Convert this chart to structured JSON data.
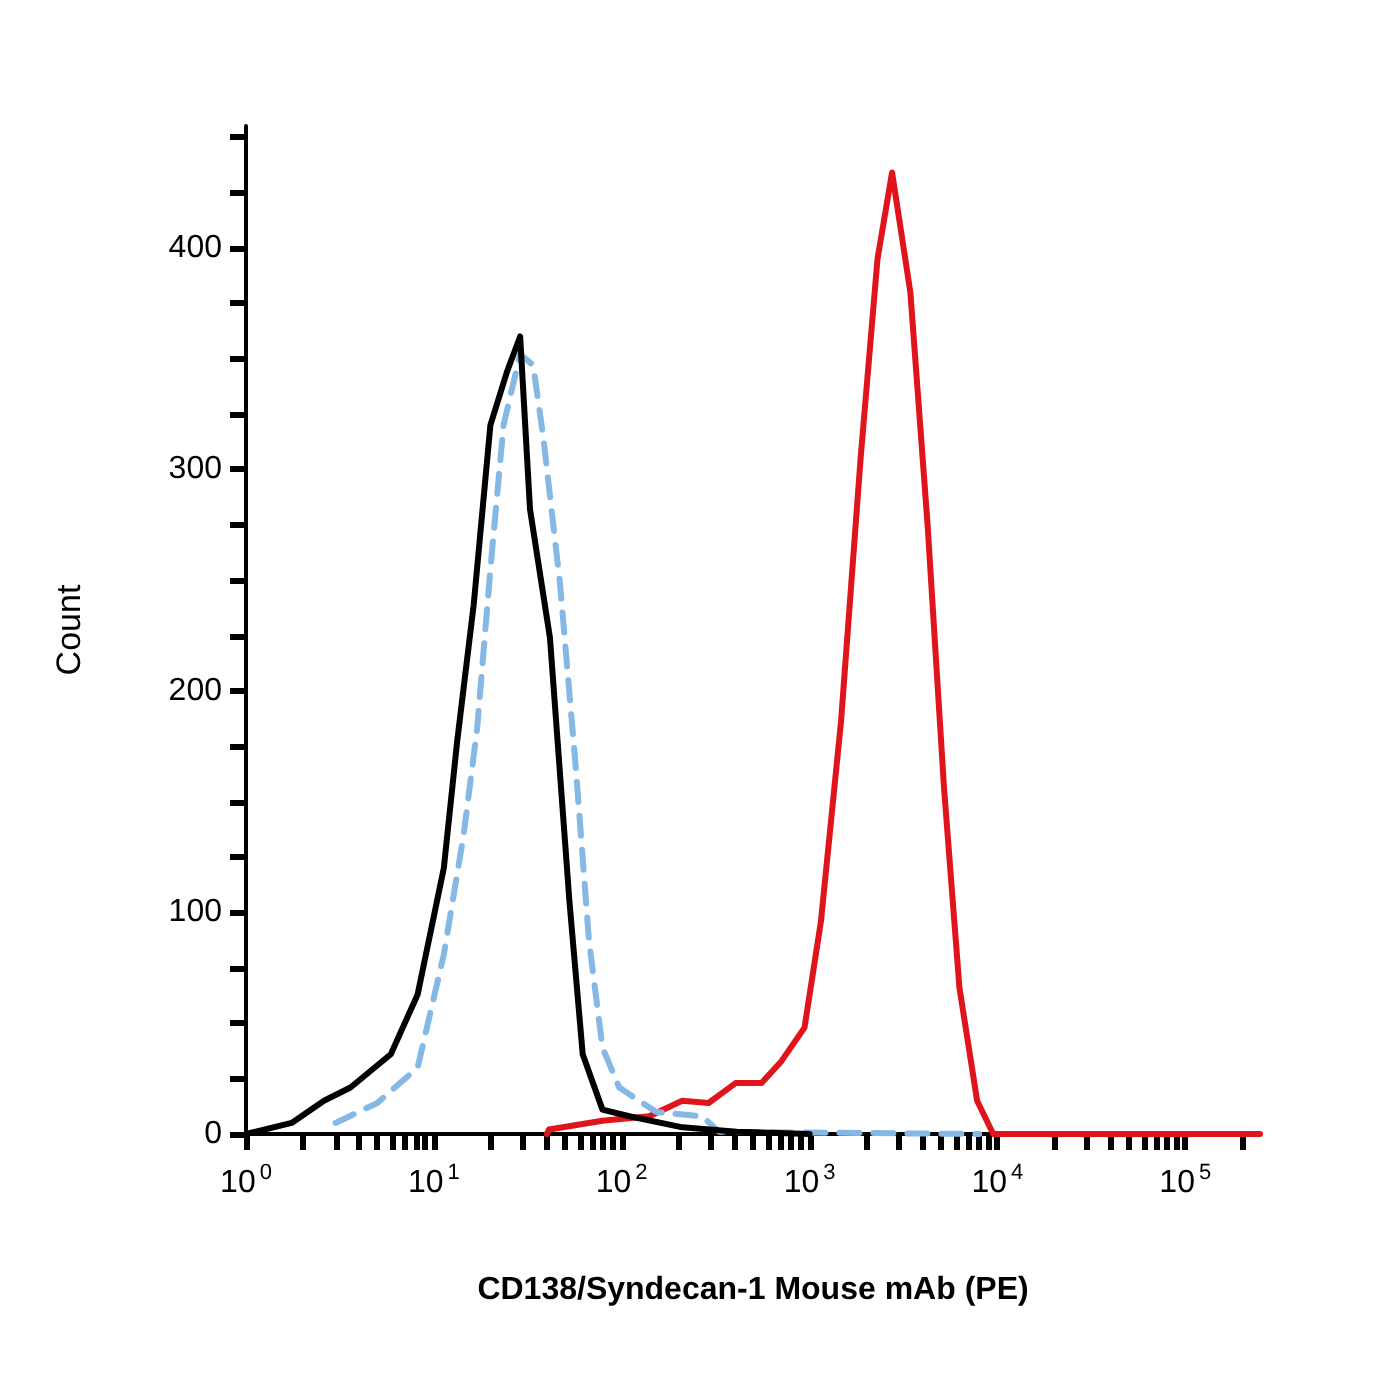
{
  "chart_data": {
    "type": "line",
    "ylabel": "Count",
    "xlabel": "CD138/Syndecan-1 Mouse mAb (PE)",
    "log": "x",
    "grid": false,
    "marker": "none",
    "xlim": [
      1,
      250000
    ],
    "xticks": [
      {
        "value": 1,
        "label": "10$^{0}$"
      },
      {
        "value": 2,
        "label": null
      },
      {
        "value": 3,
        "label": null
      },
      {
        "value": 4,
        "label": null
      },
      {
        "value": 5,
        "label": null
      },
      {
        "value": 6,
        "label": null
      },
      {
        "value": 7,
        "label": null
      },
      {
        "value": 8,
        "label": null
      },
      {
        "value": 9,
        "label": null
      },
      {
        "value": 10,
        "label": "10$^{1}$"
      },
      {
        "value": 20,
        "label": null
      },
      {
        "value": 30,
        "label": null
      },
      {
        "value": 40,
        "label": null
      },
      {
        "value": 50,
        "label": null
      },
      {
        "value": 60,
        "label": null
      },
      {
        "value": 70,
        "label": null
      },
      {
        "value": 80,
        "label": null
      },
      {
        "value": 90,
        "label": null
      },
      {
        "value": 100,
        "label": "10$^{2}$"
      },
      {
        "value": 200,
        "label": null
      },
      {
        "value": 300,
        "label": null
      },
      {
        "value": 400,
        "label": null
      },
      {
        "value": 500,
        "label": null
      },
      {
        "value": 600,
        "label": null
      },
      {
        "value": 700,
        "label": null
      },
      {
        "value": 800,
        "label": null
      },
      {
        "value": 900,
        "label": null
      },
      {
        "value": 1000,
        "label": "10$^{3}$"
      },
      {
        "value": 2000,
        "label": null
      },
      {
        "value": 3000,
        "label": null
      },
      {
        "value": 4000,
        "label": null
      },
      {
        "value": 5000,
        "label": null
      },
      {
        "value": 6000,
        "label": null
      },
      {
        "value": 7000,
        "label": null
      },
      {
        "value": 8000,
        "label": null
      },
      {
        "value": 9000,
        "label": null
      },
      {
        "value": 10000,
        "label": "10$^{4}$"
      },
      {
        "value": 20000,
        "label": null
      },
      {
        "value": 30000,
        "label": null
      },
      {
        "value": 40000,
        "label": null
      },
      {
        "value": 50000,
        "label": null
      },
      {
        "value": 60000,
        "label": null
      },
      {
        "value": 70000,
        "label": null
      },
      {
        "value": 80000,
        "label": null
      },
      {
        "value": 90000,
        "label": null
      },
      {
        "value": 100000,
        "label": "10$^{5}$"
      },
      {
        "value": 200000,
        "label": null
      }
    ],
    "ylim": [
      0,
      455
    ],
    "yticks": [
      0,
      {
        "value": 25,
        "label": null
      },
      {
        "value": 50,
        "label": null
      },
      {
        "value": 75,
        "label": null
      },
      100,
      {
        "value": 125,
        "label": null
      },
      {
        "value": 150,
        "label": null
      },
      {
        "value": 175,
        "label": null
      },
      200,
      {
        "value": 225,
        "label": null
      },
      {
        "value": 250,
        "label": null
      },
      {
        "value": 275,
        "label": null
      },
      300,
      {
        "value": 325,
        "label": null
      },
      {
        "value": 350,
        "label": null
      },
      {
        "value": 375,
        "label": null
      },
      400,
      {
        "value": 425,
        "label": null
      },
      {
        "value": 450,
        "label": null
      }
    ],
    "series": [
      {
        "color": "#000000",
        "line_style": "solid",
        "x": [
          1,
          1.75,
          2.6,
          3.6,
          5.9,
          8.2,
          11.3,
          13.3,
          16.3,
          20,
          24.5,
          28.8,
          32.5,
          41.5,
          52.7,
          62,
          79,
          110,
          210,
          410,
          1000
        ],
        "values": [
          0,
          5,
          15,
          21,
          36,
          63,
          120,
          177,
          239,
          320,
          344,
          360,
          282,
          224,
          105,
          36,
          11,
          8,
          3,
          1,
          0
        ]
      },
      {
        "color": "#85b8e5",
        "line_style": "dashed",
        "x": [
          3,
          5,
          8.2,
          11.3,
          14.4,
          17,
          20,
          23.5,
          28.8,
          33.8,
          38.3,
          47,
          57,
          67,
          79,
          97,
          152,
          268,
          330,
          8000
        ],
        "values": [
          5,
          14,
          30,
          81,
          135,
          183,
          255,
          320,
          352,
          347,
          314,
          248,
          165,
          87,
          39,
          21,
          10,
          8,
          1,
          0
        ]
      },
      {
        "color": "#e0141b",
        "line_style": "solid",
        "x": [
          40,
          41,
          79,
          140,
          210,
          290,
          404,
          555,
          710,
          940,
          1150,
          1470,
          1870,
          2300,
          2750,
          3440,
          4250,
          5200,
          6280,
          7800,
          9500,
          250000
        ],
        "values": [
          0,
          2,
          6,
          8,
          15,
          14,
          23,
          23,
          33,
          48,
          96,
          186,
          305,
          395,
          434,
          380,
          275,
          156,
          66,
          15,
          0,
          0
        ]
      }
    ]
  }
}
